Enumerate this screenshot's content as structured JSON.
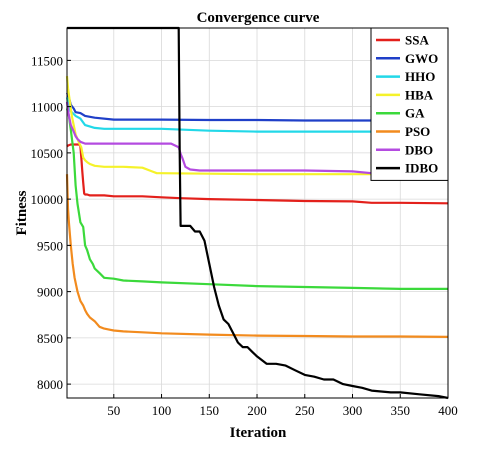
{
  "chart_data": {
    "type": "line",
    "title": "Convergence curve",
    "xlabel": "Iteration",
    "ylabel": "Fitness",
    "xlim": [
      1,
      400
    ],
    "ylim": [
      7850,
      11850
    ],
    "xticks": [
      50,
      100,
      150,
      200,
      250,
      300,
      350,
      400
    ],
    "yticks": [
      8000,
      8500,
      9000,
      9500,
      10000,
      10500,
      11000,
      11500
    ],
    "grid": true,
    "legend_position": "top-right",
    "series": [
      {
        "name": "SSA",
        "color": "#e3201b",
        "x": [
          1,
          2,
          5,
          10,
          14,
          15,
          16,
          17,
          18,
          19,
          20,
          22,
          25,
          40,
          50,
          60,
          80,
          100,
          120,
          150,
          200,
          250,
          300,
          320,
          350,
          400
        ],
        "y": [
          10570,
          10580,
          10590,
          10590,
          10590,
          10570,
          10450,
          10300,
          10180,
          10060,
          10050,
          10050,
          10040,
          10040,
          10030,
          10030,
          10030,
          10020,
          10010,
          10000,
          9990,
          9980,
          9975,
          9960,
          9960,
          9955
        ]
      },
      {
        "name": "GWO",
        "color": "#1f3fc8",
        "x": [
          1,
          3,
          5,
          8,
          10,
          15,
          20,
          30,
          50,
          75,
          100,
          150,
          200,
          250,
          300,
          350,
          400
        ],
        "y": [
          11150,
          11100,
          11020,
          10980,
          10940,
          10930,
          10900,
          10880,
          10860,
          10860,
          10860,
          10855,
          10855,
          10850,
          10850,
          10850,
          10850
        ]
      },
      {
        "name": "HHO",
        "color": "#22d8e8",
        "x": [
          1,
          3,
          5,
          8,
          10,
          15,
          20,
          30,
          40,
          60,
          80,
          100,
          150,
          200,
          250,
          300,
          350,
          400
        ],
        "y": [
          11100,
          11000,
          10950,
          10920,
          10900,
          10870,
          10800,
          10770,
          10760,
          10760,
          10760,
          10760,
          10740,
          10730,
          10730,
          10730,
          10730,
          10730
        ]
      },
      {
        "name": "HBA",
        "color": "#f5f22a",
        "x": [
          1,
          2,
          4,
          6,
          8,
          10,
          12,
          14,
          16,
          18,
          20,
          22,
          25,
          30,
          40,
          60,
          80,
          90,
          95,
          100,
          150,
          200,
          250,
          300,
          400
        ],
        "y": [
          11330,
          11200,
          11050,
          10900,
          10800,
          10700,
          10650,
          10600,
          10560,
          10450,
          10420,
          10400,
          10380,
          10360,
          10350,
          10350,
          10340,
          10300,
          10280,
          10280,
          10275,
          10270,
          10270,
          10270,
          10270
        ]
      },
      {
        "name": "GA",
        "color": "#3bd93b",
        "x": [
          1,
          3,
          5,
          8,
          10,
          12,
          15,
          18,
          20,
          22,
          25,
          28,
          30,
          35,
          40,
          50,
          60,
          80,
          100,
          150,
          200,
          250,
          300,
          350,
          400
        ],
        "y": [
          10980,
          10900,
          10750,
          10500,
          10150,
          9950,
          9750,
          9700,
          9500,
          9450,
          9350,
          9300,
          9250,
          9200,
          9150,
          9140,
          9120,
          9110,
          9100,
          9080,
          9060,
          9050,
          9040,
          9030,
          9030
        ]
      },
      {
        "name": "PSO",
        "color": "#f28b1e",
        "x": [
          1,
          2,
          3,
          5,
          7,
          9,
          12,
          15,
          18,
          20,
          22,
          25,
          30,
          35,
          40,
          45,
          50,
          60,
          80,
          100,
          150,
          200,
          250,
          300,
          350,
          400
        ],
        "y": [
          10270,
          9900,
          9750,
          9500,
          9300,
          9150,
          9000,
          8900,
          8850,
          8800,
          8760,
          8720,
          8680,
          8620,
          8600,
          8590,
          8580,
          8570,
          8560,
          8550,
          8535,
          8525,
          8520,
          8515,
          8515,
          8510
        ]
      },
      {
        "name": "DBO",
        "color": "#b44be0",
        "x": [
          1,
          3,
          5,
          8,
          10,
          12,
          15,
          20,
          25,
          30,
          50,
          80,
          110,
          118,
          120,
          122,
          125,
          130,
          140,
          150,
          200,
          250,
          300,
          320,
          350,
          400
        ],
        "y": [
          11050,
          10900,
          10800,
          10730,
          10680,
          10650,
          10620,
          10600,
          10600,
          10600,
          10600,
          10600,
          10600,
          10560,
          10490,
          10440,
          10350,
          10320,
          10310,
          10310,
          10310,
          10310,
          10300,
          10280,
          10280,
          10275
        ]
      },
      {
        "name": "IDBO",
        "color": "#000000",
        "x": [
          1,
          50,
          100,
          118,
          119,
          120,
          121,
          130,
          135,
          140,
          145,
          150,
          155,
          160,
          165,
          170,
          175,
          180,
          185,
          190,
          195,
          200,
          210,
          220,
          230,
          240,
          250,
          260,
          270,
          280,
          290,
          300,
          310,
          320,
          330,
          340,
          350,
          370,
          390,
          400
        ],
        "y": [
          11850,
          11850,
          11850,
          11850,
          10500,
          9710,
          9710,
          9710,
          9650,
          9650,
          9550,
          9300,
          9050,
          8850,
          8700,
          8650,
          8550,
          8450,
          8400,
          8400,
          8350,
          8300,
          8220,
          8220,
          8200,
          8150,
          8100,
          8080,
          8050,
          8050,
          8000,
          7980,
          7960,
          7930,
          7920,
          7910,
          7910,
          7890,
          7870,
          7850
        ]
      }
    ]
  }
}
